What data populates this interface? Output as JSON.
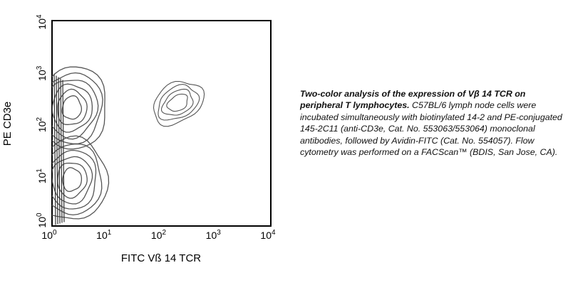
{
  "chart_data": {
    "type": "contour",
    "xlabel": "FITC Vß 14 TCR",
    "ylabel": "PE CD3e",
    "x_scale": "log",
    "y_scale": "log",
    "xlim": [
      1,
      10000
    ],
    "ylim": [
      1,
      10000
    ],
    "x_ticks": [
      {
        "base": "10",
        "exp": "0",
        "value": 1
      },
      {
        "base": "10",
        "exp": "1",
        "value": 10
      },
      {
        "base": "10",
        "exp": "2",
        "value": 100
      },
      {
        "base": "10",
        "exp": "3",
        "value": 1000
      },
      {
        "base": "10",
        "exp": "4",
        "value": 10000
      }
    ],
    "y_ticks": [
      {
        "base": "10",
        "exp": "0",
        "value": 1
      },
      {
        "base": "10",
        "exp": "1",
        "value": 10
      },
      {
        "base": "10",
        "exp": "2",
        "value": 100
      },
      {
        "base": "10",
        "exp": "3",
        "value": 1000
      },
      {
        "base": "10",
        "exp": "4",
        "value": 10000
      }
    ],
    "populations": [
      {
        "center_x": 2.3,
        "center_y": 200,
        "levels": 6
      },
      {
        "center_x": 2.3,
        "center_y": 8,
        "levels": 6
      },
      {
        "center_x": 200,
        "center_y": 250,
        "levels": 4
      }
    ],
    "grid": false,
    "line_color": "#555555"
  },
  "caption": {
    "bold": "Two-color analysis of the expression of Vβ 14 TCR on peripheral T lymphocytes.",
    "text": " C57BL/6 lymph node cells were incubated simultaneously with biotinylated 14-2 and PE-conjugated 145-2C11 (anti-CD3e, Cat. No. 553063/553064) monoclonal antibodies, followed by Avidin-FITC (Cat. No. 554057). Flow cytometry was performed on a FACScan™ (BDIS, San Jose, CA)."
  }
}
